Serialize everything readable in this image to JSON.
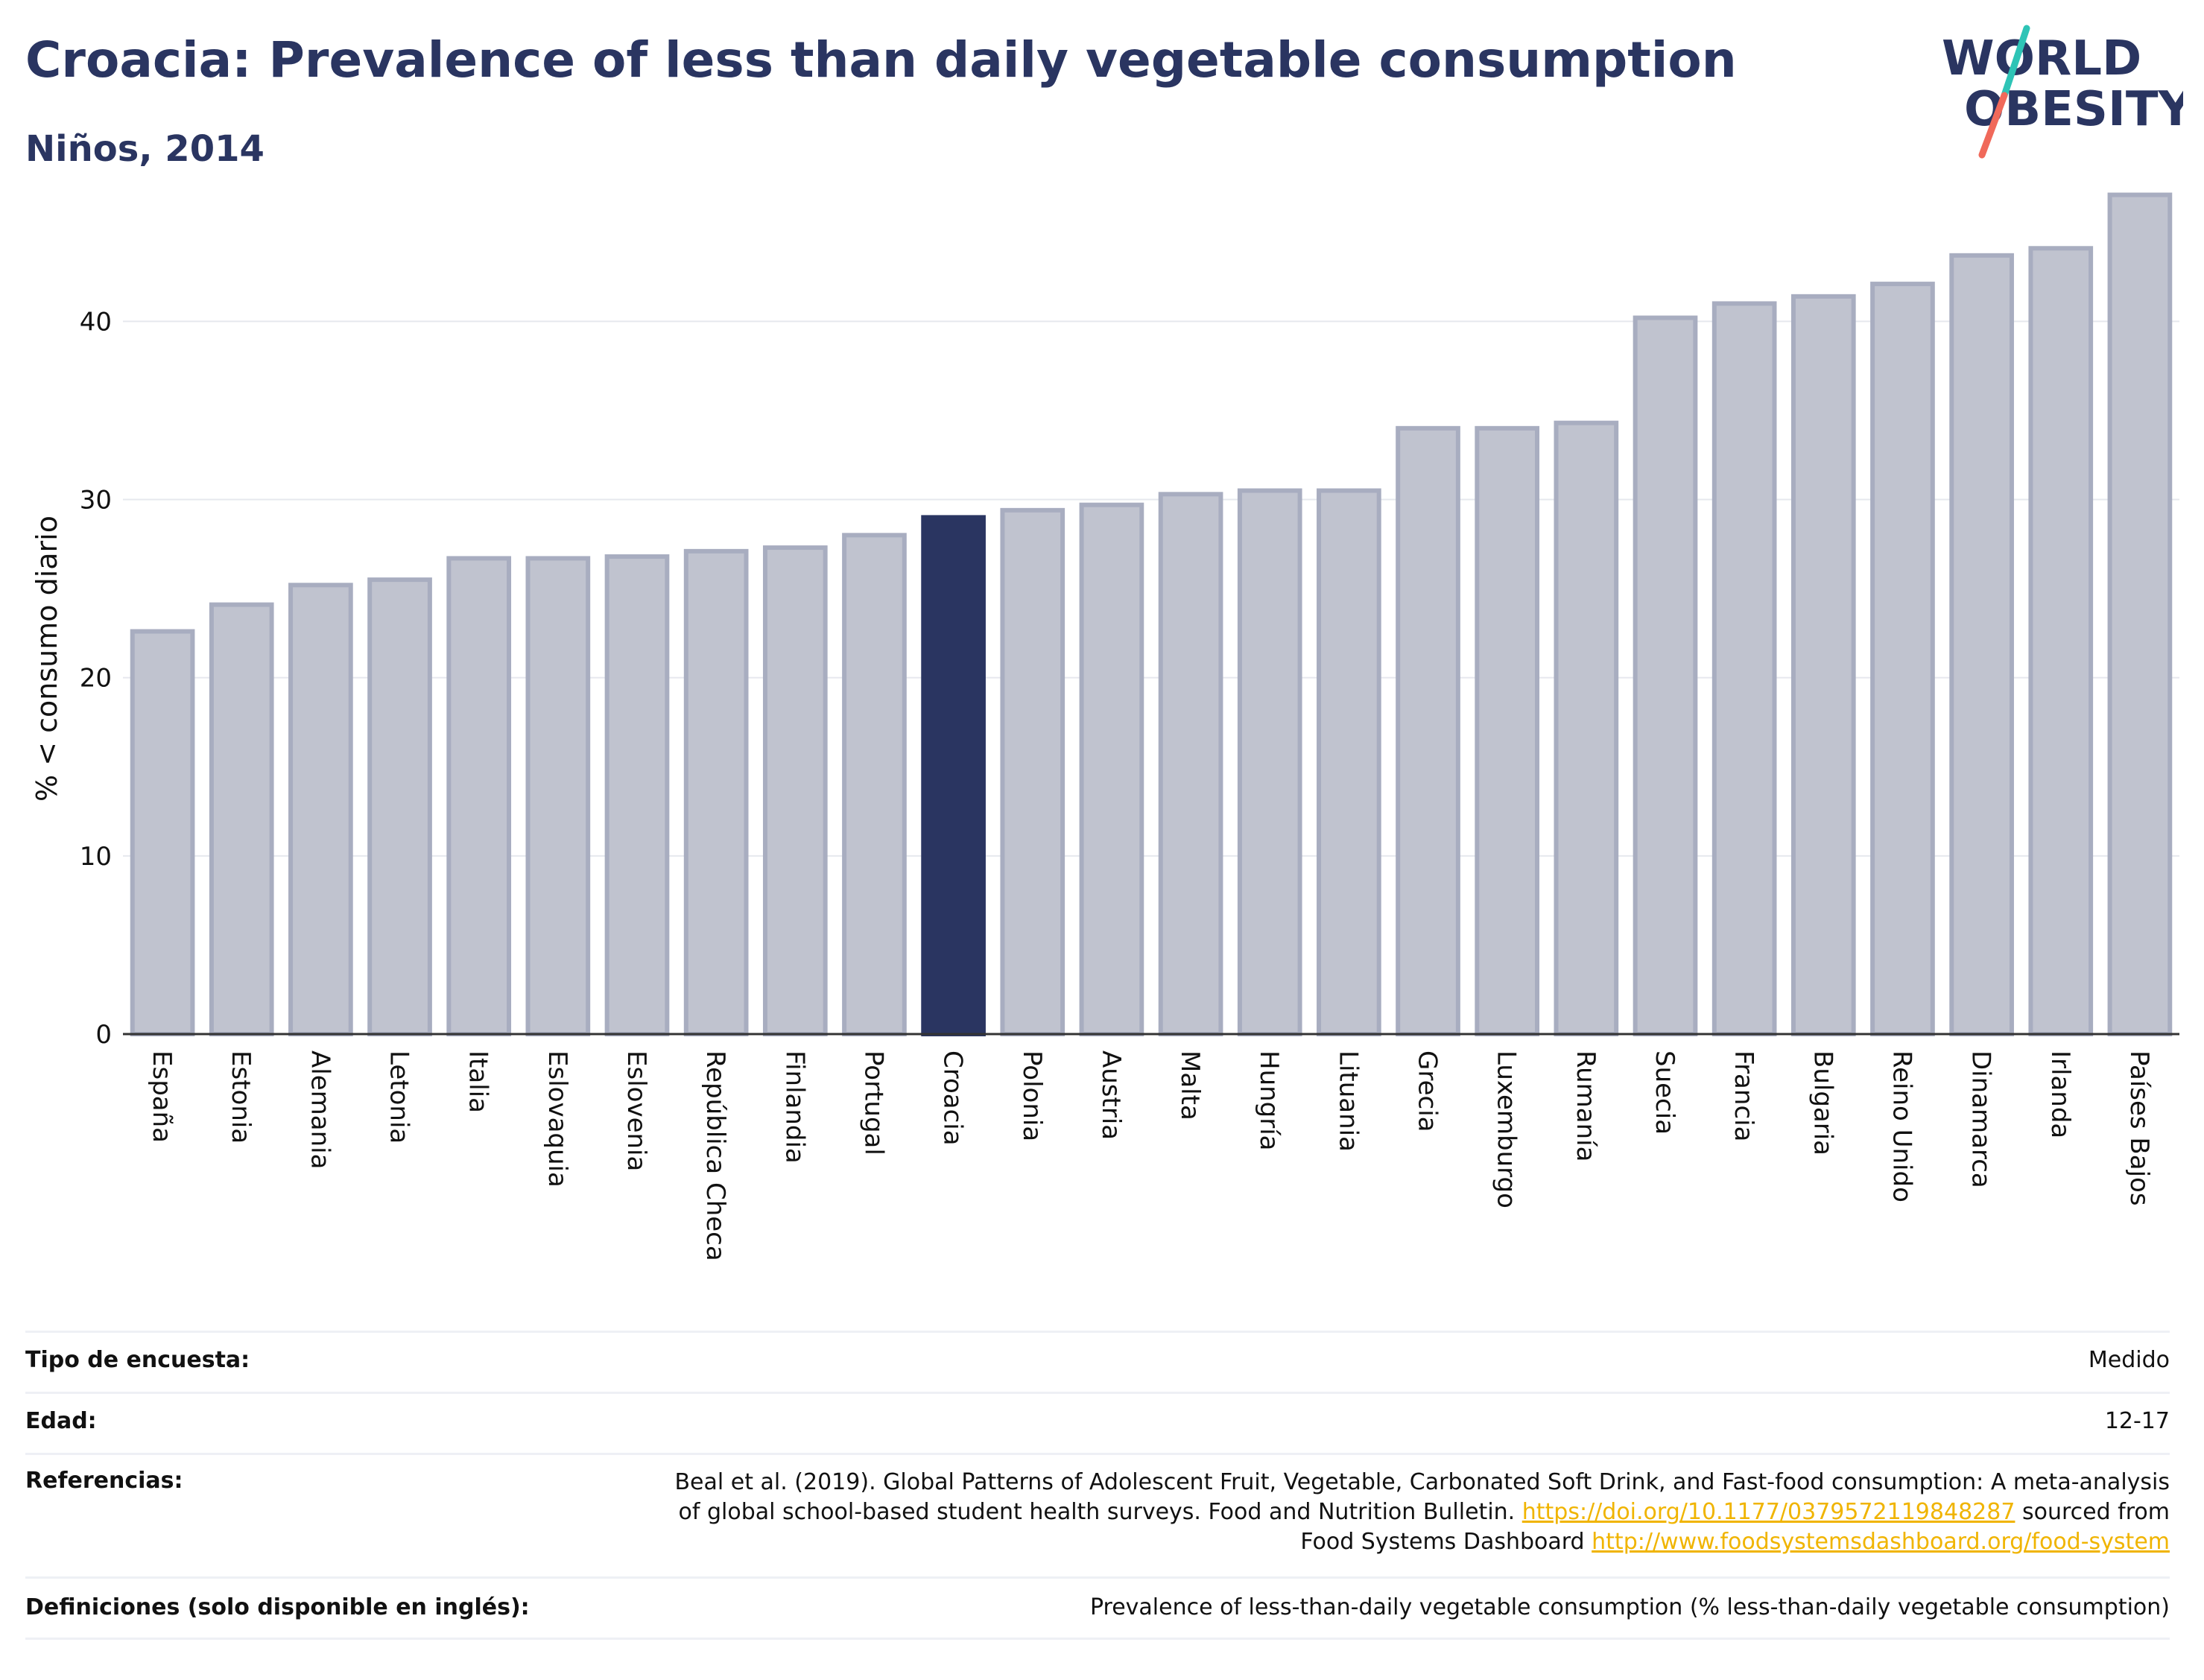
{
  "header": {
    "title": "Croacia: Prevalence of less than daily vegetable consumption",
    "subtitle": "Niños, 2014"
  },
  "logo": {
    "line1": "WORLD",
    "line2": "OBESITY",
    "colors": {
      "text": "#2a3561",
      "slash_top": "#2ec4b6",
      "slash_bottom": "#f0695a"
    }
  },
  "chart_data": {
    "type": "bar",
    "ylabel": "% < consumo diario",
    "ylim": [
      0,
      48
    ],
    "yticks": [
      0,
      10,
      20,
      30,
      40
    ],
    "grid": true,
    "highlight": "Croacia",
    "colors": {
      "bar_fill": "#c0c3cf",
      "bar_stroke": "#a8adc0",
      "highlight_fill": "#2a3561",
      "axis": "#333333",
      "grid": "#e6e8ee"
    },
    "categories": [
      "España",
      "Estonia",
      "Alemania",
      "Letonia",
      "Italia",
      "Eslovaquia",
      "Eslovenia",
      "República Checa",
      "Finlandia",
      "Portugal",
      "Croacia",
      "Polonia",
      "Austria",
      "Malta",
      "Hungría",
      "Lituania",
      "Grecia",
      "Luxemburgo",
      "Rumanía",
      "Suecia",
      "Francia",
      "Bulgaria",
      "Reino Unido",
      "Dinamarca",
      "Irlanda",
      "Países Bajos"
    ],
    "values": [
      22.6,
      24.1,
      25.2,
      25.5,
      26.7,
      26.7,
      26.8,
      27.1,
      27.3,
      28.0,
      29.0,
      29.4,
      29.7,
      30.3,
      30.5,
      30.5,
      34.0,
      34.0,
      34.3,
      40.2,
      41.0,
      41.4,
      42.1,
      43.7,
      44.1,
      47.1
    ]
  },
  "details": {
    "survey_type_label": "Tipo de encuesta:",
    "survey_type_value": "Medido",
    "age_label": "Edad:",
    "age_value": "12-17",
    "references_label": "Referencias:",
    "references_line1": "Beal et al. (2019). Global Patterns of Adolescent Fruit, Vegetable, Carbonated Soft Drink, and Fast-food consumption: A meta-analysis",
    "references_line2_text": "of global school-based student health surveys. Food and Nutrition Bulletin.",
    "references_doi": "https://doi.org/10.1177/0379572119848287",
    "references_line2_tail": "sourced from",
    "references_line3_text": "Food Systems Dashboard",
    "references_url": "http://www.foodsystemsdashboard.org/food-system",
    "definitions_label": "Definiciones (solo disponible en inglés):",
    "definitions_value": "Prevalence of less-than-daily vegetable consumption (% less-than-daily vegetable consumption)"
  }
}
